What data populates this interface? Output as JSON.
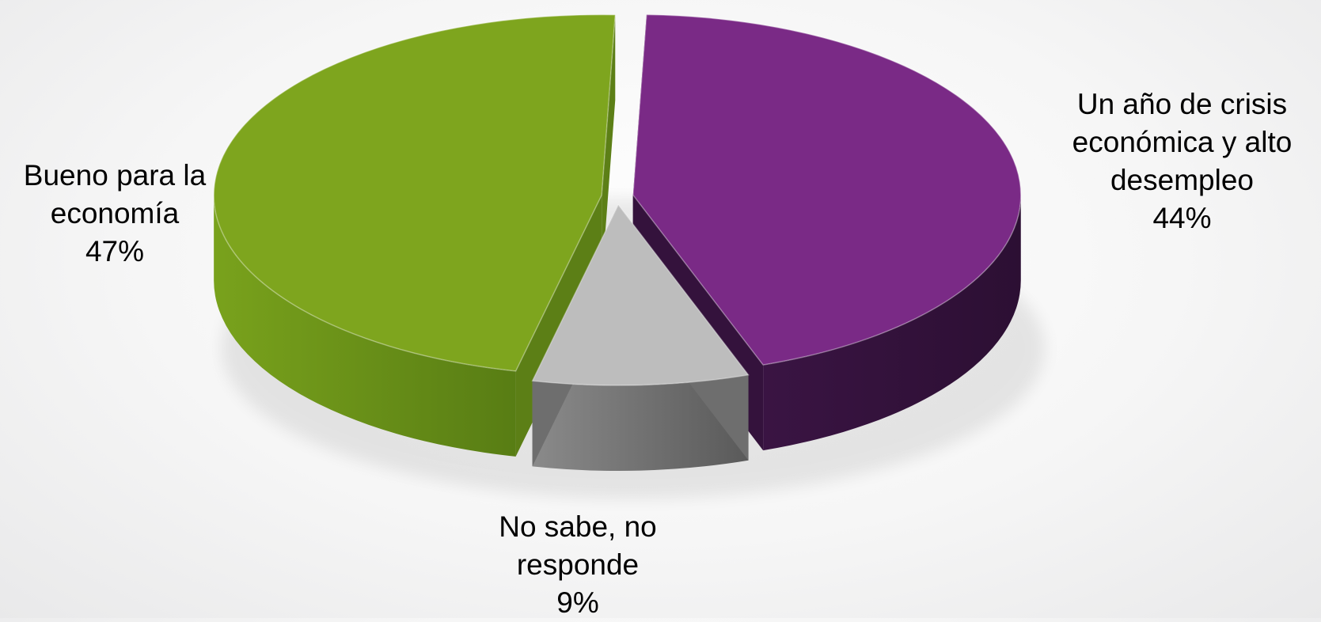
{
  "chart_data": {
    "type": "pie",
    "title": "",
    "slices": [
      {
        "name": "Bueno para la economía",
        "label_lines": [
          "Bueno para la",
          "economía"
        ],
        "value": 47,
        "value_label": "47%",
        "color": "#7ea51e",
        "side_color": "#5c7f16"
      },
      {
        "name": "Un año de crisis económica y alto desempleo",
        "label_lines": [
          "Un año de crisis",
          "económica y alto",
          "desempleo"
        ],
        "value": 44,
        "value_label": "44%",
        "color": "#7a2a86",
        "side_color": "#34123c"
      },
      {
        "name": "No sabe, no responde",
        "label_lines": [
          "No sabe, no",
          "responde"
        ],
        "value": 9,
        "value_label": "9%",
        "color": "#bdbdbd",
        "side_color": "#6e6e6e"
      }
    ],
    "legend": "none",
    "style": "3d-exploded"
  }
}
